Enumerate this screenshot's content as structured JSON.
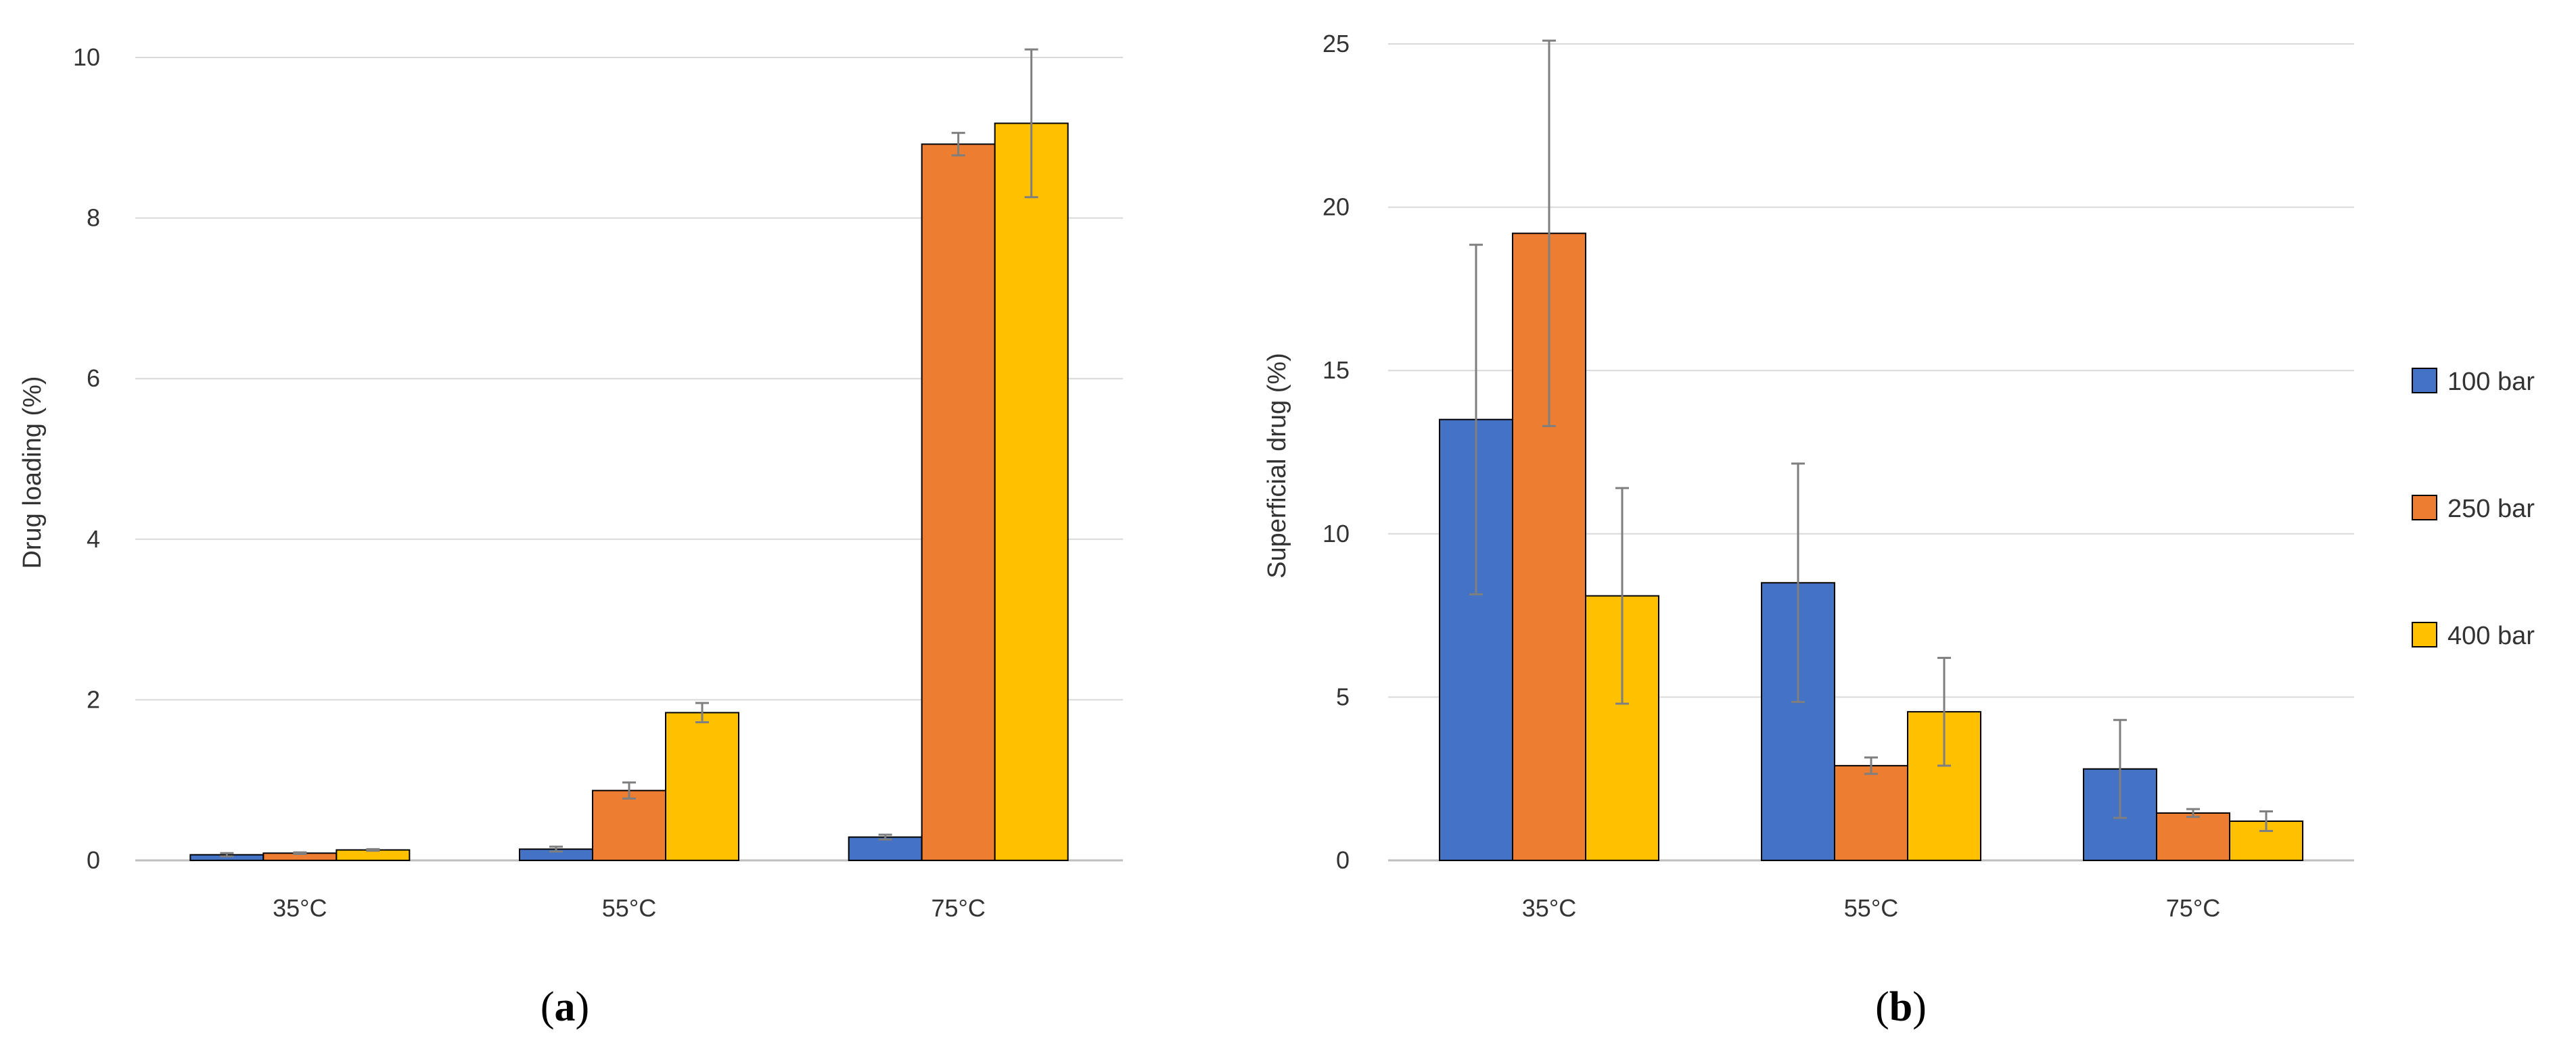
{
  "chart_data": [
    {
      "type": "bar",
      "panel_label": "a",
      "categories": [
        "35°C",
        "55°C",
        "75°C"
      ],
      "series": [
        {
          "name": "100 bar",
          "values": [
            0.07,
            0.14,
            0.29
          ],
          "errors": [
            0.02,
            0.03,
            0.03
          ]
        },
        {
          "name": "250 bar",
          "values": [
            0.09,
            0.87,
            8.92
          ],
          "errors": [
            0.01,
            0.1,
            0.14
          ]
        },
        {
          "name": "400 bar",
          "values": [
            0.13,
            1.84,
            9.18
          ],
          "errors": [
            0.01,
            0.12,
            0.92
          ]
        }
      ],
      "title": "",
      "xlabel": "",
      "ylabel": "Drug loading (%)",
      "ylim": [
        0,
        10
      ],
      "yticks": [
        0,
        2,
        4,
        6,
        8,
        10
      ],
      "grid": true,
      "legend": null
    },
    {
      "type": "bar",
      "panel_label": "b",
      "categories": [
        "35°C",
        "55°C",
        "75°C"
      ],
      "series": [
        {
          "name": "100 bar",
          "values": [
            13.5,
            8.5,
            2.8
          ],
          "errors": [
            5.35,
            3.65,
            1.5
          ]
        },
        {
          "name": "250 bar",
          "values": [
            19.2,
            2.9,
            1.45
          ],
          "errors": [
            5.9,
            0.25,
            0.12
          ]
        },
        {
          "name": "400 bar",
          "values": [
            8.1,
            4.55,
            1.2
          ],
          "errors": [
            3.3,
            1.65,
            0.3
          ]
        }
      ],
      "title": "",
      "xlabel": "",
      "ylabel": "Superficial drug (%)",
      "ylim": [
        0,
        25
      ],
      "yticks": [
        0,
        5,
        10,
        15,
        20,
        25
      ],
      "grid": true,
      "legend": "right"
    }
  ],
  "colors": {
    "series": [
      "#4472C4",
      "#ED7D31",
      "#FFC000"
    ],
    "grid": "#D9D9D9",
    "axis": "#BFBFBF",
    "error": "#7F7F7F",
    "bar_outline": "#000000"
  },
  "legend_items": [
    "100 bar",
    "250 bar",
    "400 bar"
  ]
}
